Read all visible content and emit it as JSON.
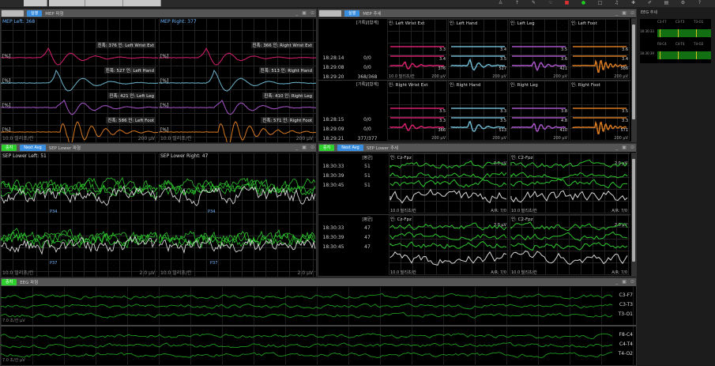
{
  "topbar": {
    "tabs": [
      "",
      "",
      "",
      ""
    ],
    "icons": [
      "user-icon",
      "pin-icon",
      "comment-icon",
      "hand-icon",
      "record-stop-icon",
      "record-go-icon",
      "monitor-icon",
      "bell-icon",
      "marker-icon",
      "pen-icon",
      "save-icon",
      "settings-icon",
      "help-icon"
    ]
  },
  "buttons": {
    "stop": "중지",
    "run": "실행",
    "next_avg": "Next Avg"
  },
  "colors": {
    "wrist": "#d6206e",
    "hand": "#6cb4cc",
    "leg": "#a855c8",
    "foot": "#d87a22",
    "sep": "#2ec82e",
    "avg": "#d8d8d8",
    "eeg": "#1f9a1f"
  },
  "mep_wave": {
    "title": "MEP 파형",
    "left": {
      "title": "MEP Left: 368",
      "rows": [
        {
          "unit": "[%]",
          "ann": "진폭: 376 인: Left Wrist Ext"
        },
        {
          "unit": "[%]",
          "ann": "진폭: 527 인: Left Hand"
        },
        {
          "unit": "[%]",
          "ann": "진폭: 421 인: Left Leg"
        },
        {
          "unit": "[%]",
          "ann": "진폭: 586 인: Left Foot"
        }
      ],
      "time_scale": "10.0 밀리초/칸",
      "amp_scale": "200 µV"
    },
    "right": {
      "title": "MEP Right: 377",
      "rows": [
        {
          "unit": "[%]",
          "ann": "진폭: 366 인: Right Wrist Ext"
        },
        {
          "unit": "[%]",
          "ann": "진폭: 513 인: Right Hand"
        },
        {
          "unit": "[%]",
          "ann": "진폭: 410 인: Right Leg"
        },
        {
          "unit": "[%]",
          "ann": "진폭: 571 인: Right Foot"
        }
      ],
      "time_scale": "10.0 밀리초/칸",
      "amp_scale": "200 µV"
    }
  },
  "mep_trend": {
    "title": "MEP 추세",
    "groups": [
      {
        "count_header": "[기록]/[합계]",
        "times": [
          "18:28:14",
          "18:29:08",
          "18:29:20"
        ],
        "counts": [
          "0/0",
          "0/0",
          "368/368"
        ],
        "channels": [
          {
            "name": "인: Left Wrist Ext",
            "vals": [
              "3.3",
              "3.4",
              "376"
            ]
          },
          {
            "name": "인: Left Hand",
            "vals": [
              "3.4",
              "3.5",
              "527"
            ]
          },
          {
            "name": "인: Left Leg",
            "vals": [
              "3.5",
              "3.6",
              "421"
            ]
          },
          {
            "name": "인: Left Foot",
            "vals": [
              "3.6",
              "3.4",
              "586"
            ]
          }
        ]
      },
      {
        "count_header": "[기록]/[합계]",
        "times": [
          "18:28:15",
          "18:29:09",
          "18:29:21"
        ],
        "counts": [
          "0/0",
          "0/0",
          "377/377"
        ],
        "channels": [
          {
            "name": "인: Right Wrist Ext",
            "vals": [
              "3.5",
              "3.3",
              "366"
            ]
          },
          {
            "name": "인: Right Hand",
            "vals": [
              "3.3",
              "3.5",
              "513"
            ]
          },
          {
            "name": "인: Right Leg",
            "vals": [
              "3.8",
              "4.8",
              "410"
            ]
          },
          {
            "name": "인: Right Foot",
            "vals": [
              "3.5",
              "3.3",
              "571"
            ]
          }
        ]
      }
    ],
    "time_scale": "10.0 밀리초/칸",
    "amp_scale": "200 µV"
  },
  "eeg_trend": {
    "title": "EEG 추세",
    "labels": [
      "C3-F7",
      "C3-T3",
      "T3-O1",
      "F8-C4",
      "C4-T4",
      "T4-O2"
    ],
    "times": [
      "18:30:33",
      "18:30:39"
    ]
  },
  "sep_wave": {
    "title": "SEP Lower 파형",
    "left": {
      "title": "SEP Lower Left: 51",
      "peaks": [
        "P34",
        "P37"
      ],
      "time_scale": "10.0 밀리초/칸",
      "amp_scale": "2.0 µV"
    },
    "right": {
      "title": "SEP Lower Right: 47",
      "peaks": [
        "P34",
        "P37"
      ],
      "time_scale": "10.0 밀리초/칸",
      "amp_scale": "2.0 µV"
    },
    "times_a": [
      "18:30:33",
      "18:30:39",
      "18:30:45"
    ],
    "times_b": [
      "18:30:33",
      "18:30:39",
      "18:30:45"
    ]
  },
  "sep_trend": {
    "title": "SEP Lower 추세",
    "groups": [
      {
        "count_header": "[평균]",
        "times": [
          "18:30:33",
          "18:30:39",
          "18:30:45"
        ],
        "counts": [
          "51",
          "51",
          "51"
        ],
        "channels": [
          {
            "name": "인: Cz-Fpz",
            "amp": "2.0 µV",
            "ar": "A/R: 7/0"
          },
          {
            "name": "인: C2-Fpz",
            "amp": "2.0 µV",
            "ar": "A/R: 7/0"
          }
        ]
      },
      {
        "count_header": "[평균]",
        "times": [
          "18:30:33",
          "18:30:39",
          "18:30:45"
        ],
        "counts": [
          "47",
          "47",
          "47"
        ],
        "channels": [
          {
            "name": "인: Cz-Fpz",
            "amp": "2.0 µV",
            "ar": "A/R: 7/0"
          },
          {
            "name": "인: C2-Fpz",
            "amp": "2.0 µV",
            "ar": "A/R: 7/0"
          }
        ]
      }
    ],
    "time_scale": "10.0 밀리초/칸"
  },
  "eeg_wave": {
    "title": "EEG 파형",
    "labels": [
      "C3-F7",
      "C3-T3",
      "T3-O1",
      "F8-C4",
      "C4-T4",
      "T4-O2"
    ],
    "scale_a": "7.0 초/칸 µV",
    "scale_b": "7.0 초/칸 µV"
  }
}
